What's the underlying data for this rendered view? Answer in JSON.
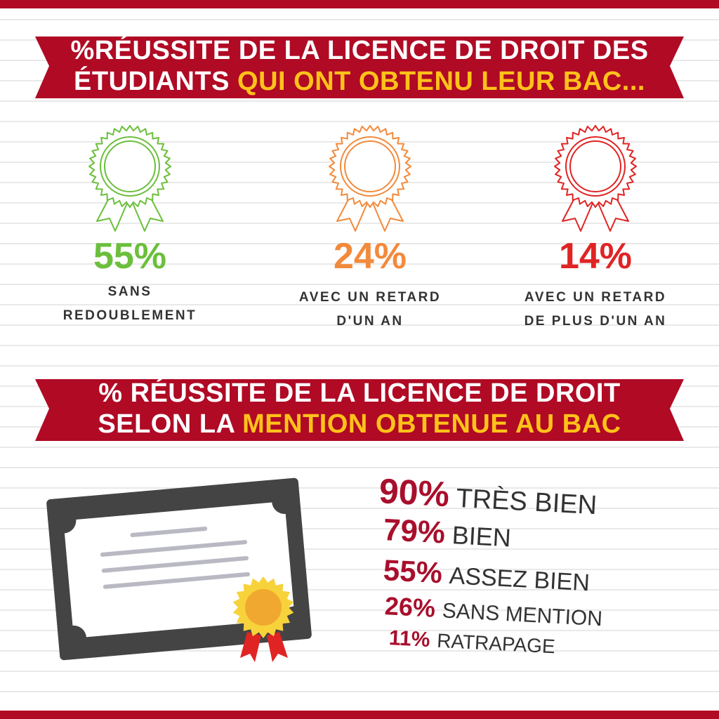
{
  "banner1": {
    "line1": "%RÉUSSITE DE LA LICENCE DE DROIT DES",
    "line2_white": "ÉTUDIANTS ",
    "line2_yellow": "QUI ONT OBTENU LEUR BAC..."
  },
  "awards": [
    {
      "percent": "55%",
      "label_line1": "SANS",
      "label_line2": "REDOUBLEMENT",
      "color": "#6cbf3c",
      "icon": "award-ribbon-icon"
    },
    {
      "percent": "24%",
      "label_line1": "AVEC UN RETARD",
      "label_line2": "D'UN AN",
      "color": "#f28a3c",
      "icon": "award-ribbon-icon"
    },
    {
      "percent": "14%",
      "label_line1": "AVEC UN RETARD",
      "label_line2": "DE PLUS D'UN AN",
      "color": "#e02424",
      "icon": "award-ribbon-icon"
    }
  ],
  "banner2": {
    "line1": "% RÉUSSITE DE LA LICENCE DE DROIT",
    "line2_white": "SELON LA ",
    "line2_yellow": "MENTION OBTENUE AU BAC"
  },
  "mentions": [
    {
      "percent": "90%",
      "label": "TRÈS BIEN"
    },
    {
      "percent": "79%",
      "label": "BIEN"
    },
    {
      "percent": "55%",
      "label": "ASSEZ BIEN"
    },
    {
      "percent": "26%",
      "label": "SANS MENTION"
    },
    {
      "percent": "11%",
      "label": "RATRAPAGE"
    }
  ],
  "colors": {
    "banner_red": "#b00a25",
    "highlight_yellow": "#ffc21a",
    "mention_red": "#a80f2c"
  }
}
